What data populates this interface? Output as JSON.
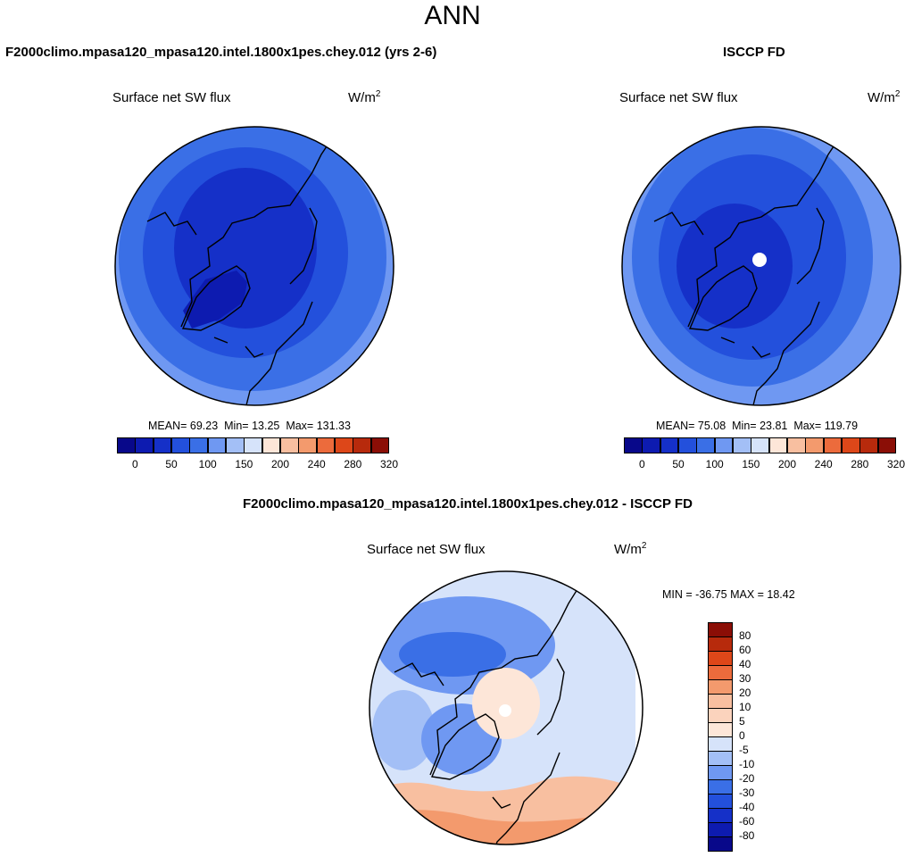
{
  "page": {
    "title": "ANN"
  },
  "colors": {
    "map_edge": "#000000",
    "land_outline": "#000000"
  },
  "chart_data": [
    {
      "type": "polar-contour-map",
      "id": "model",
      "case_title": "F2000climo.mpasa120_mpasa120.intel.1800x1pes.chey.012 (yrs 2-6)",
      "variable": "Surface net SW flux",
      "units_base": "W/m",
      "units_exp": "2",
      "stats": {
        "mean_label": "MEAN=",
        "mean": "69.23",
        "min_label": "Min=",
        "min": "13.25",
        "max_label": "Max=",
        "max": "131.33"
      },
      "colorbar": {
        "orientation": "horizontal",
        "colors": [
          "#08088a",
          "#0d1bb0",
          "#1530c8",
          "#2350dc",
          "#3a6fe6",
          "#6f98f2",
          "#a3bff6",
          "#d6e3fa",
          "#fde6d8",
          "#f8bfa0",
          "#f39a6d",
          "#ec6b3c",
          "#dd4719",
          "#b72a0c",
          "#8b0e06"
        ],
        "tick_labels": [
          "0",
          "50",
          "100",
          "150",
          "200",
          "240",
          "280",
          "320"
        ]
      }
    },
    {
      "type": "polar-contour-map",
      "id": "obs",
      "case_title": "ISCCP FD",
      "variable": "Surface net SW flux",
      "units_base": "W/m",
      "units_exp": "2",
      "stats": {
        "mean_label": "MEAN=",
        "mean": "75.08",
        "min_label": "Min=",
        "min": "23.81",
        "max_label": "Max=",
        "max": "119.79"
      },
      "colorbar": {
        "orientation": "horizontal",
        "colors": [
          "#08088a",
          "#0d1bb0",
          "#1530c8",
          "#2350dc",
          "#3a6fe6",
          "#6f98f2",
          "#a3bff6",
          "#d6e3fa",
          "#fde6d8",
          "#f8bfa0",
          "#f39a6d",
          "#ec6b3c",
          "#dd4719",
          "#b72a0c",
          "#8b0e06"
        ],
        "tick_labels": [
          "0",
          "50",
          "100",
          "150",
          "200",
          "240",
          "280",
          "320"
        ]
      }
    },
    {
      "type": "polar-contour-map",
      "id": "diff",
      "case_title": "F2000climo.mpasa120_mpasa120.intel.1800x1pes.chey.012 - ISCCP FD",
      "variable": "Surface net SW flux",
      "units_base": "W/m",
      "units_exp": "2",
      "stats_text": "MIN = -36.75 MAX =  18.42",
      "colorbar": {
        "orientation": "vertical",
        "colors_top_to_bottom": [
          "#8b0e06",
          "#b72a0c",
          "#dd4719",
          "#ec6b3c",
          "#f39a6d",
          "#f8bfa0",
          "#fbd3bd",
          "#fde6d8",
          "#d6e3fa",
          "#a3bff6",
          "#6f98f2",
          "#3a6fe6",
          "#2350dc",
          "#1530c8",
          "#0d1bb0",
          "#08088a"
        ],
        "tick_labels_top_to_bottom": [
          "80",
          "60",
          "40",
          "30",
          "20",
          "10",
          "5",
          "0",
          "-5",
          "-10",
          "-20",
          "-30",
          "-40",
          "-60",
          "-80"
        ]
      }
    }
  ]
}
